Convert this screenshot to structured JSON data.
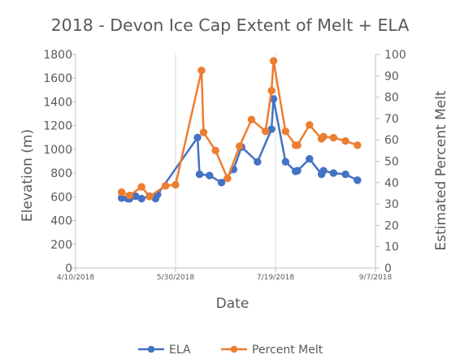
{
  "chart_data": {
    "type": "line",
    "title": "2018 - Devon Ice Cap Extent of Melt + ELA",
    "xlabel": "Date",
    "ylabel": "Elevation (m)",
    "y2label": "Estimated Percent Melt",
    "xlim": [
      "2018-04-10",
      "2018-09-07"
    ],
    "x_ticks": [
      "4/10/2018",
      "5/30/2018",
      "7/19/2018",
      "9/7/2018"
    ],
    "ylim": [
      0,
      1800
    ],
    "y_ticks": [
      "0",
      "200",
      "400",
      "600",
      "800",
      "1000",
      "1200",
      "1400",
      "1600",
      "1800"
    ],
    "y2lim": [
      0,
      100
    ],
    "y2_ticks": [
      "0",
      "10",
      "20",
      "30",
      "40",
      "50",
      "60",
      "70",
      "80",
      "90",
      "100"
    ],
    "grid": "vertical",
    "legend": "bottom",
    "series": [
      {
        "name": "ELA",
        "axis": "left",
        "color": "#4472C4",
        "points": [
          [
            "2018-05-03",
            590
          ],
          [
            "2018-05-06",
            585
          ],
          [
            "2018-05-07",
            583
          ],
          [
            "2018-05-10",
            605
          ],
          [
            "2018-05-13",
            585
          ],
          [
            "2018-05-17",
            605
          ],
          [
            "2018-05-20",
            585
          ],
          [
            "2018-05-21",
            620
          ],
          [
            "2018-06-10",
            1100
          ],
          [
            "2018-06-11",
            790
          ],
          [
            "2018-06-16",
            780
          ],
          [
            "2018-06-22",
            720
          ],
          [
            "2018-06-28",
            830
          ],
          [
            "2018-07-02",
            1020
          ],
          [
            "2018-07-10",
            895
          ],
          [
            "2018-07-17",
            1170
          ],
          [
            "2018-07-18",
            1425
          ],
          [
            "2018-07-24",
            895
          ],
          [
            "2018-07-29",
            815
          ],
          [
            "2018-07-30",
            820
          ],
          [
            "2018-08-05",
            920
          ],
          [
            "2018-08-11",
            790
          ],
          [
            "2018-08-12",
            820
          ],
          [
            "2018-08-17",
            800
          ],
          [
            "2018-08-23",
            790
          ],
          [
            "2018-08-29",
            740
          ]
        ]
      },
      {
        "name": "Percent Melt",
        "axis": "right",
        "color": "#ED7D31",
        "points": [
          [
            "2018-05-03",
            35.5
          ],
          [
            "2018-05-07",
            34.0
          ],
          [
            "2018-05-13",
            38.0
          ],
          [
            "2018-05-17",
            33.5
          ],
          [
            "2018-05-25",
            38.5
          ],
          [
            "2018-05-30",
            39.0
          ],
          [
            "2018-06-12",
            92.5
          ],
          [
            "2018-06-13",
            63.5
          ],
          [
            "2018-06-19",
            55.0
          ],
          [
            "2018-06-25",
            42.0
          ],
          [
            "2018-07-01",
            57.0
          ],
          [
            "2018-07-07",
            69.5
          ],
          [
            "2018-07-14",
            64.0
          ],
          [
            "2018-07-17",
            83.0
          ],
          [
            "2018-07-18",
            97.0
          ],
          [
            "2018-07-24",
            64.0
          ],
          [
            "2018-07-29",
            57.5
          ],
          [
            "2018-07-30",
            57.5
          ],
          [
            "2018-08-05",
            67.0
          ],
          [
            "2018-08-11",
            60.5
          ],
          [
            "2018-08-12",
            61.5
          ],
          [
            "2018-08-17",
            61.0
          ],
          [
            "2018-08-23",
            59.5
          ],
          [
            "2018-08-29",
            57.5
          ]
        ]
      }
    ]
  }
}
